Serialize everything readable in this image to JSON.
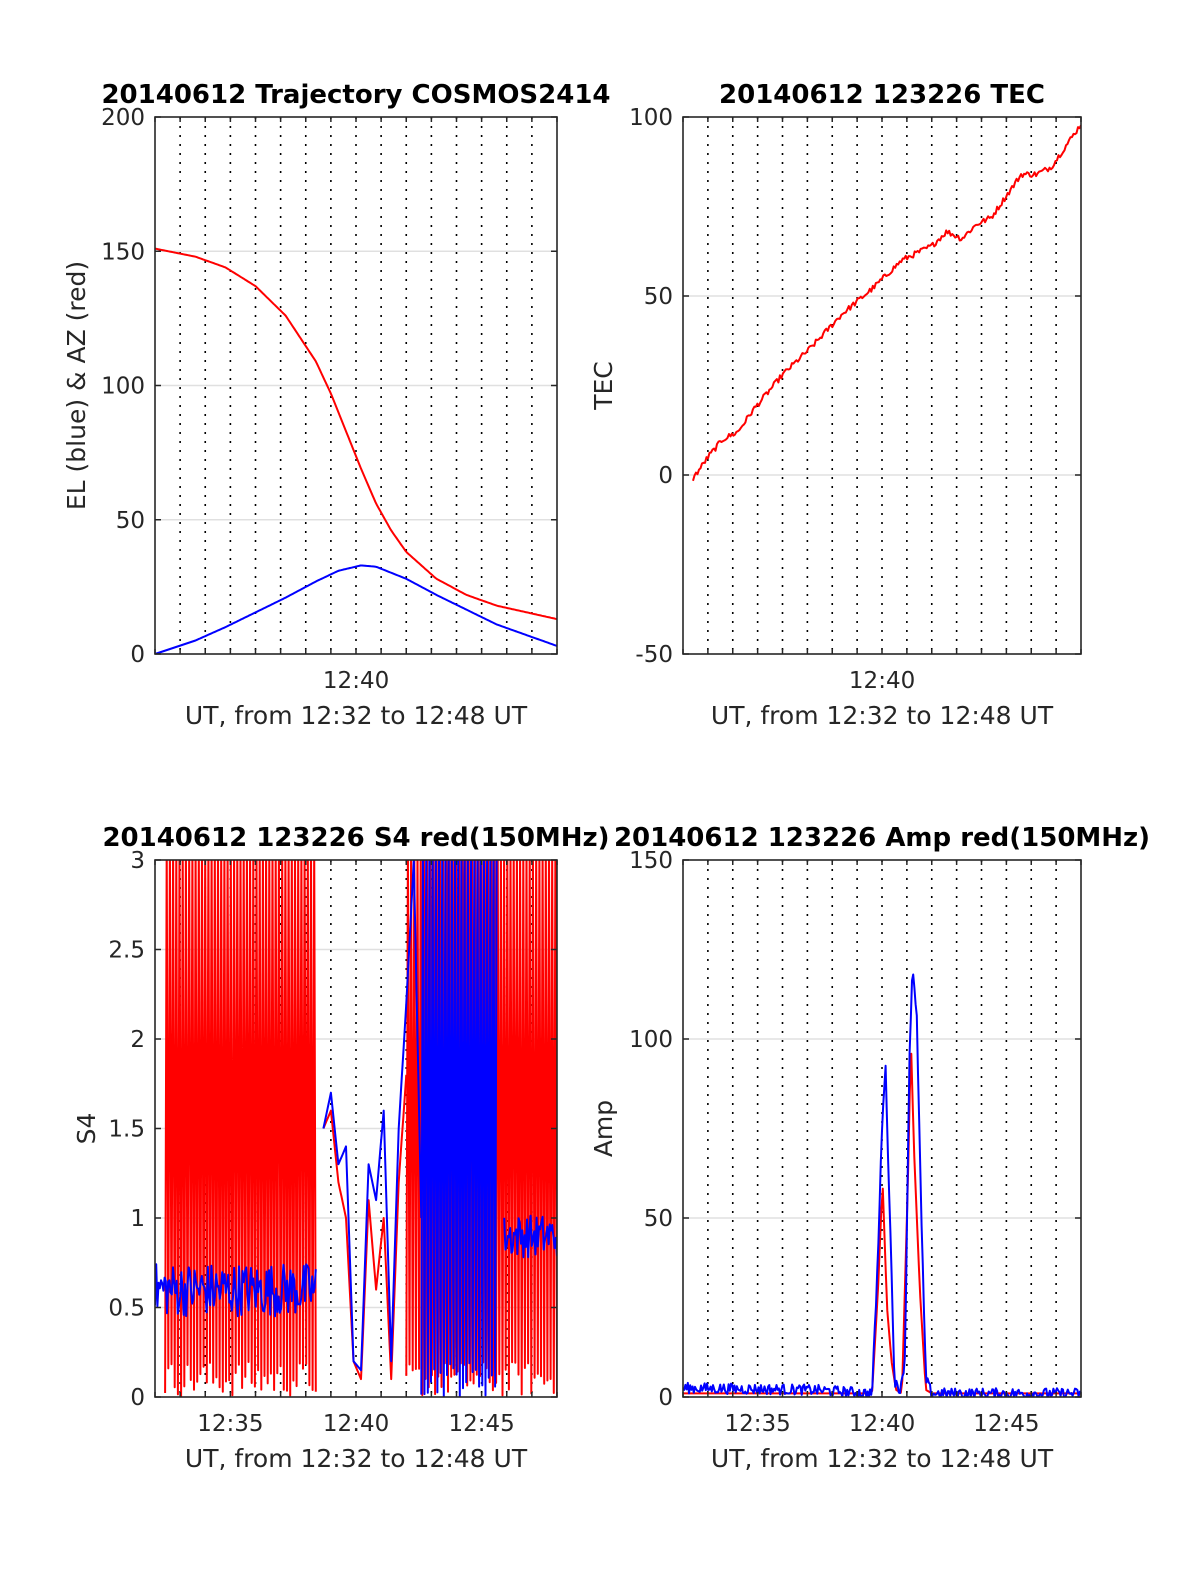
{
  "chart_data": [
    {
      "id": "trajectory",
      "type": "line",
      "title": "20140612 Trajectory COSMOS2414",
      "xlabel": "UT, from 12:32 to 12:48 UT",
      "ylabel": "EL (blue) & AZ (red)",
      "xlim": [
        12.5333,
        12.8
      ],
      "ylim": [
        0,
        200
      ],
      "yticks": [
        0,
        50,
        100,
        150,
        200
      ],
      "xticks": [
        {
          "x": 12.6667,
          "label": "12:40"
        }
      ],
      "grid": true,
      "series": [
        {
          "color": "#ff0000",
          "x": [
            12.5333,
            12.56,
            12.58,
            12.6,
            12.62,
            12.64,
            12.65,
            12.66,
            12.67,
            12.68,
            12.69,
            12.7,
            12.72,
            12.74,
            12.76,
            12.78,
            12.8
          ],
          "y": [
            151,
            148,
            144,
            137,
            126,
            109,
            97,
            83,
            69,
            56,
            46,
            38,
            28,
            22,
            18,
            15.5,
            13
          ]
        },
        {
          "color": "#0000ff",
          "x": [
            12.5333,
            12.56,
            12.58,
            12.6,
            12.62,
            12.64,
            12.655,
            12.67,
            12.68,
            12.7,
            12.72,
            12.74,
            12.76,
            12.78,
            12.8
          ],
          "y": [
            0,
            5,
            10,
            15.5,
            21,
            27,
            31,
            33,
            32.5,
            28,
            22,
            16.5,
            11,
            7,
            3
          ]
        }
      ]
    },
    {
      "id": "tec",
      "type": "line",
      "title": "20140612 123226 TEC",
      "xlabel": "UT, from 12:32 to 12:48 UT",
      "ylabel": "TEC",
      "xlim": [
        12.5333,
        12.8
      ],
      "ylim": [
        -50,
        100
      ],
      "yticks": [
        -50,
        0,
        50,
        100
      ],
      "xticks": [
        {
          "x": 12.6667,
          "label": "12:40"
        }
      ],
      "grid": true,
      "series": [
        {
          "color": "#ff0000",
          "x": [
            12.54,
            12.55,
            12.56,
            12.57,
            12.58,
            12.6,
            12.62,
            12.64,
            12.66,
            12.68,
            12.7,
            12.71,
            12.72,
            12.73,
            12.74,
            12.75,
            12.76,
            12.77,
            12.78,
            12.8
          ],
          "y": [
            -1,
            5,
            10,
            12,
            18,
            28,
            36,
            45,
            52,
            60,
            64,
            68,
            66,
            70,
            72,
            78,
            84,
            84,
            86,
            98
          ]
        }
      ]
    },
    {
      "id": "s4",
      "type": "line",
      "title": "20140612 123226 S4 red(150MHz)",
      "xlabel": "UT, from 12:32 to 12:48 UT",
      "ylabel": "S4",
      "xlim": [
        12.5333,
        12.8
      ],
      "ylim": [
        0,
        3
      ],
      "yticks": [
        0,
        0.5,
        1,
        1.5,
        2,
        2.5,
        3
      ],
      "xticks": [
        {
          "x": 12.5833,
          "label": "12:35"
        },
        {
          "x": 12.6667,
          "label": "12:40"
        },
        {
          "x": 12.75,
          "label": "12:45"
        }
      ],
      "grid": true,
      "series": [
        {
          "color": "#ff0000",
          "noise": "full",
          "x": [
            12.54,
            12.64
          ],
          "y": [
            0,
            3
          ]
        },
        {
          "color": "#ff0000",
          "x": [
            12.645,
            12.65,
            12.655,
            12.66,
            12.665,
            12.67,
            12.675,
            12.68,
            12.685,
            12.69,
            12.695,
            12.7
          ],
          "y": [
            1.5,
            1.6,
            1.2,
            1.0,
            0.2,
            0.1,
            1.1,
            0.6,
            1.0,
            0.1,
            1.2,
            1.8
          ]
        },
        {
          "color": "#ff0000",
          "noise": "full",
          "x": [
            12.7,
            12.8
          ],
          "y": [
            0,
            3
          ]
        },
        {
          "color": "#0000ff",
          "noise": 0.15,
          "x": [
            12.5333,
            12.64
          ],
          "y": [
            0.6,
            0.6
          ]
        },
        {
          "color": "#0000ff",
          "x": [
            12.645,
            12.65,
            12.655,
            12.66,
            12.665,
            12.67,
            12.675,
            12.68,
            12.685,
            12.69,
            12.695,
            12.7,
            12.705,
            12.71
          ],
          "y": [
            1.5,
            1.7,
            1.3,
            1.4,
            0.2,
            0.15,
            1.3,
            1.1,
            1.6,
            0.2,
            1.5,
            2.2,
            3.0,
            1.0
          ]
        },
        {
          "color": "#0000ff",
          "noise": "full",
          "x": [
            12.71,
            12.76
          ],
          "y": [
            0,
            3
          ]
        },
        {
          "color": "#0000ff",
          "noise": 0.12,
          "x": [
            12.765,
            12.8
          ],
          "y": [
            0.9,
            0.9
          ]
        }
      ]
    },
    {
      "id": "amp",
      "type": "line",
      "title": "20140612 123226 Amp red(150MHz)",
      "xlabel": "UT, from 12:32 to 12:48 UT",
      "ylabel": "Amp",
      "xlim": [
        12.5333,
        12.8
      ],
      "ylim": [
        0,
        150
      ],
      "yticks": [
        0,
        50,
        100,
        150
      ],
      "xticks": [
        {
          "x": 12.5833,
          "label": "12:35"
        },
        {
          "x": 12.6667,
          "label": "12:40"
        },
        {
          "x": 12.75,
          "label": "12:45"
        }
      ],
      "grid": true,
      "series": [
        {
          "color": "#ff0000",
          "x": [
            12.5333,
            12.66,
            12.664,
            12.667,
            12.67,
            12.673,
            12.676,
            12.68,
            12.684,
            12.686,
            12.688,
            12.692,
            12.696,
            12.7,
            12.8
          ],
          "y": [
            1,
            1,
            30,
            60,
            25,
            10,
            2,
            1,
            60,
            100,
            70,
            30,
            2,
            1,
            1
          ]
        },
        {
          "color": "#0000ff",
          "noise": 1.5,
          "x": [
            12.5333,
            12.62,
            12.66,
            12.664,
            12.667,
            12.669,
            12.672,
            12.675,
            12.678,
            12.682,
            12.685,
            12.687,
            12.69,
            12.693,
            12.696,
            12.7,
            12.75,
            12.8
          ],
          "y": [
            2.5,
            2,
            1,
            40,
            80,
            92,
            50,
            5,
            1,
            10,
            95,
            120,
            105,
            50,
            5,
            1,
            1,
            1
          ]
        }
      ]
    }
  ]
}
